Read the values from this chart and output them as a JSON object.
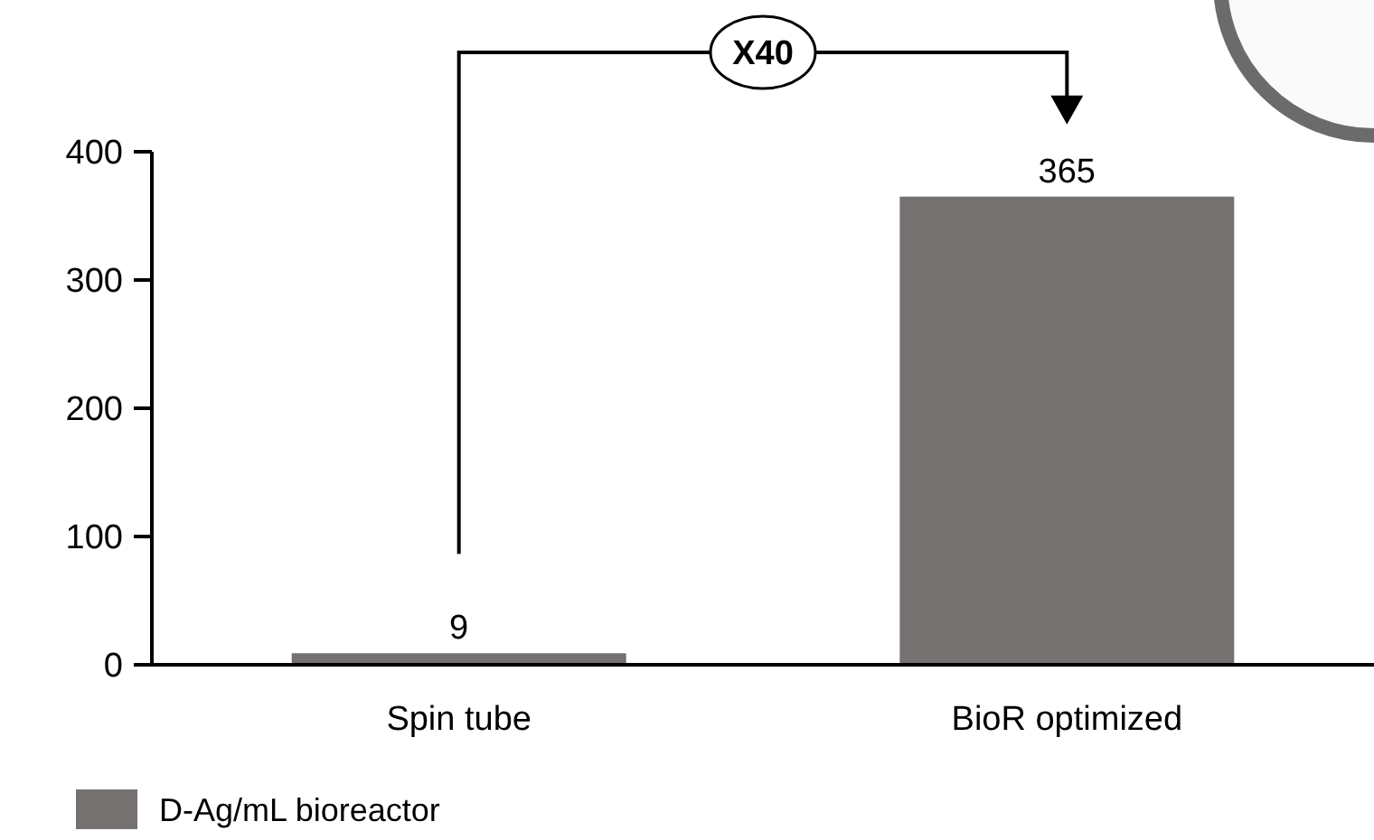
{
  "chart_data": {
    "type": "bar",
    "categories": [
      "Spin tube",
      "BioR optimized"
    ],
    "series": [
      {
        "name": "D-Ag/mL bioreactor",
        "color": "#767171",
        "values": [
          9,
          365
        ]
      }
    ],
    "ylim": [
      0,
      400
    ],
    "yticks": [
      0,
      100,
      200,
      300,
      400
    ],
    "data_labels": true,
    "grid": false,
    "legend": "bottom left",
    "annotations": [
      "X40"
    ]
  }
}
